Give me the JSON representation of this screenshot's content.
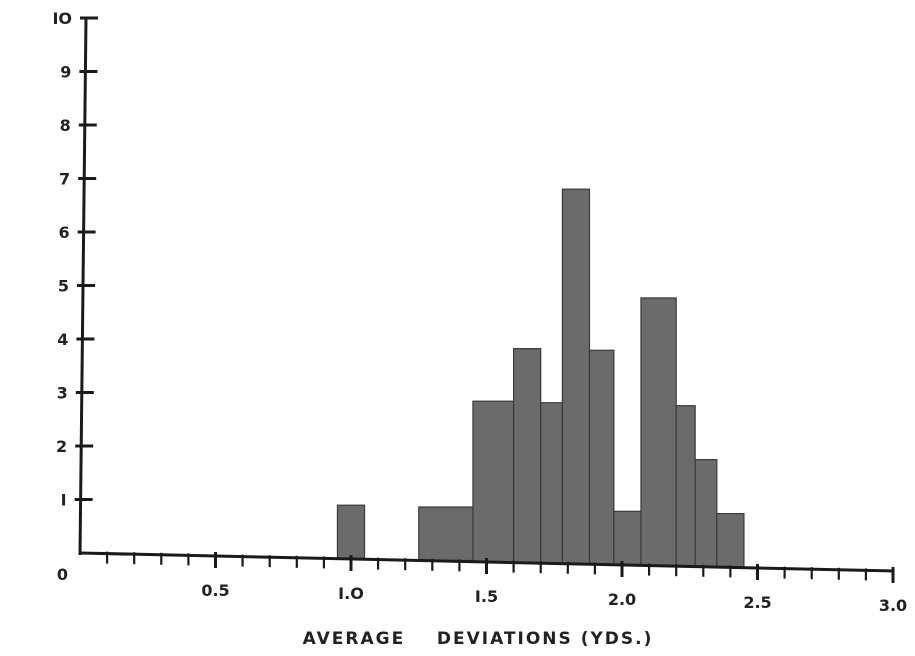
{
  "chart_data": {
    "type": "bar",
    "title": "",
    "xlabel": "AVERAGE    DEVIATIONS (YDS.)",
    "ylabel": "",
    "xlim": [
      0,
      3.0
    ],
    "ylim": [
      0,
      10
    ],
    "bin_width": 0.1,
    "x_ticks": [
      {
        "value": 0.5,
        "label": "0.5"
      },
      {
        "value": 1.0,
        "label": "I.O"
      },
      {
        "value": 1.5,
        "label": "I.5"
      },
      {
        "value": 2.0,
        "label": "2.0"
      },
      {
        "value": 2.5,
        "label": "2.5"
      },
      {
        "value": 3.0,
        "label": "3.0"
      }
    ],
    "y_ticks": [
      "0",
      "I",
      "2",
      "3",
      "4",
      "5",
      "6",
      "7",
      "8",
      "9",
      "IO"
    ],
    "grid": false,
    "color": "#6b6b6b",
    "bins": [
      {
        "start": 0.95,
        "end": 1.05,
        "value": 1
      },
      {
        "start": 1.25,
        "end": 1.45,
        "value": 1
      },
      {
        "start": 1.45,
        "end": 1.6,
        "value": 3
      },
      {
        "start": 1.6,
        "end": 1.7,
        "value": 4
      },
      {
        "start": 1.7,
        "end": 1.78,
        "value": 3
      },
      {
        "start": 1.78,
        "end": 1.88,
        "value": 7
      },
      {
        "start": 1.88,
        "end": 1.97,
        "value": 4
      },
      {
        "start": 1.97,
        "end": 2.07,
        "value": 1
      },
      {
        "start": 2.07,
        "end": 2.2,
        "value": 5
      },
      {
        "start": 2.2,
        "end": 2.27,
        "value": 3
      },
      {
        "start": 2.27,
        "end": 2.35,
        "value": 2
      },
      {
        "start": 2.35,
        "end": 2.45,
        "value": 1
      }
    ]
  }
}
